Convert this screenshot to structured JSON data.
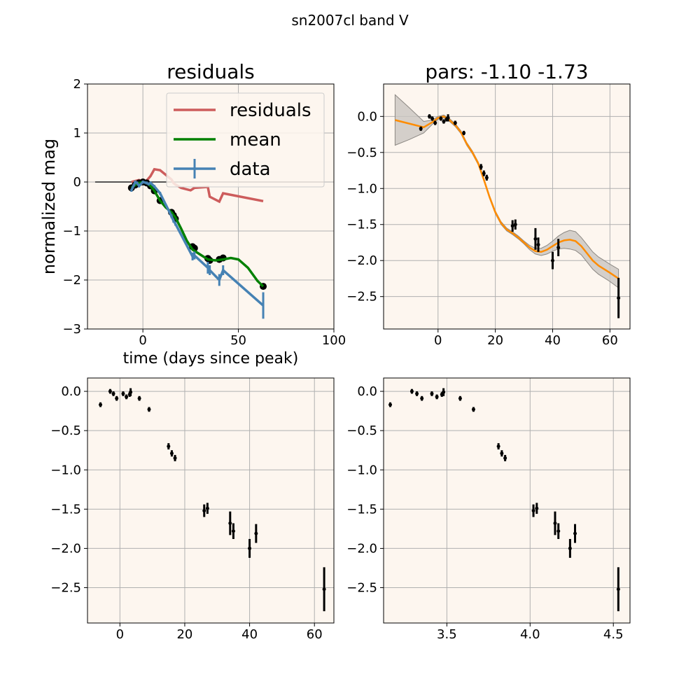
{
  "figure": {
    "suptitle": "sn2007cl band V"
  },
  "colors": {
    "face": "#fdf6ef",
    "grid": "#b0b0b0",
    "residuals": "#cd5c5c",
    "mean": "#008000",
    "data": "#4682b4",
    "fit": "#ff8c00",
    "band": "#c9c5c0",
    "points": "#000000"
  },
  "chart_data": [
    {
      "type": "line",
      "title": "residuals",
      "xlabel": "time (days since peak)",
      "ylabel": "normalized mag",
      "xlim": [
        -29,
        100
      ],
      "ylim": [
        -3,
        2
      ],
      "xticks": [
        0,
        50,
        100
      ],
      "yticks": [
        -3,
        -2,
        -1,
        0,
        1,
        2
      ],
      "grid": true,
      "legend": {
        "placement": "upper-right",
        "entries": [
          "residuals",
          "mean",
          "data"
        ]
      },
      "zero_line": {
        "x": [
          -25,
          95
        ],
        "y": 0
      },
      "series": [
        {
          "name": "residuals",
          "x": [
            -6,
            -4,
            -2,
            0,
            2,
            4,
            6,
            9,
            15,
            16,
            17,
            20,
            25,
            27,
            34,
            35,
            40,
            42,
            63
          ],
          "y": [
            0,
            0.02,
            0.04,
            0.0,
            0.03,
            0.12,
            0.26,
            0.24,
            0.05,
            -0.02,
            -0.05,
            -0.12,
            -0.17,
            -0.12,
            -0.1,
            -0.3,
            -0.4,
            -0.23,
            -0.39
          ]
        },
        {
          "name": "mean",
          "x": [
            -6,
            -4,
            -2,
            0,
            2,
            4,
            6,
            9,
            12,
            15,
            17,
            20,
            23,
            26,
            30,
            34,
            38,
            42,
            46,
            50,
            55,
            60,
            63
          ],
          "y": [
            -0.12,
            -0.06,
            -0.02,
            0.0,
            -0.02,
            -0.08,
            -0.18,
            -0.38,
            -0.52,
            -0.62,
            -0.72,
            -0.95,
            -1.2,
            -1.38,
            -1.48,
            -1.58,
            -1.6,
            -1.58,
            -1.55,
            -1.58,
            -1.75,
            -2.02,
            -2.13
          ]
        },
        {
          "name": "data",
          "x": [
            -6,
            -4,
            -3,
            -2,
            0,
            2,
            3,
            4,
            6,
            9,
            15,
            16,
            17,
            26,
            27,
            34,
            35,
            40,
            42,
            63
          ],
          "y": [
            -0.17,
            0.0,
            -0.02,
            -0.08,
            0.0,
            -0.02,
            -0.04,
            -0.02,
            -0.09,
            -0.23,
            -0.7,
            -0.79,
            -0.85,
            -1.52,
            -1.5,
            -1.75,
            -1.8,
            -2.0,
            -1.8,
            -2.52
          ],
          "yerr": [
            0.03,
            0.03,
            0.03,
            0.03,
            0.03,
            0.03,
            0.03,
            0.03,
            0.03,
            0.03,
            0.04,
            0.04,
            0.04,
            0.08,
            0.08,
            0.12,
            0.1,
            0.12,
            0.1,
            0.27
          ]
        }
      ],
      "black_points": {
        "x": [
          -6,
          -4,
          -2,
          0,
          2,
          4,
          6,
          9,
          15,
          16,
          17,
          26,
          27,
          34,
          35,
          40,
          42,
          63
        ],
        "y": [
          -0.12,
          -0.06,
          -0.02,
          0.0,
          -0.02,
          -0.08,
          -0.18,
          -0.38,
          -0.62,
          -0.68,
          -0.75,
          -1.32,
          -1.35,
          -1.56,
          -1.6,
          -1.58,
          -1.55,
          -2.13
        ]
      }
    },
    {
      "type": "line",
      "title": "pars: -1.10 -1.73",
      "xlim": [
        -19,
        67
      ],
      "ylim": [
        -2.95,
        0.45
      ],
      "xticks": [
        0,
        20,
        40,
        60
      ],
      "yticks": [
        0.0,
        -0.5,
        -1.0,
        -1.5,
        -2.0,
        -2.5
      ],
      "grid": true,
      "fit": {
        "x": [
          -15,
          -10,
          -5,
          -2,
          0,
          2,
          4,
          6,
          8,
          10,
          12,
          14,
          16,
          18,
          20,
          22,
          24,
          26,
          28,
          30,
          32,
          34,
          36,
          38,
          40,
          42,
          44,
          46,
          48,
          50,
          52,
          54,
          56,
          58,
          60,
          63
        ],
        "y": [
          -0.05,
          -0.1,
          -0.15,
          -0.08,
          -0.02,
          0.0,
          -0.05,
          -0.12,
          -0.22,
          -0.38,
          -0.5,
          -0.65,
          -0.88,
          -1.12,
          -1.33,
          -1.48,
          -1.57,
          -1.62,
          -1.68,
          -1.75,
          -1.82,
          -1.87,
          -1.88,
          -1.85,
          -1.8,
          -1.75,
          -1.72,
          -1.71,
          -1.73,
          -1.8,
          -1.9,
          -2.0,
          -2.07,
          -2.12,
          -2.17,
          -2.25
        ],
        "band_width": [
          0.35,
          0.22,
          0.08,
          0.03,
          0.02,
          0.02,
          0.02,
          0.02,
          0.02,
          0.02,
          0.02,
          0.02,
          0.02,
          0.02,
          0.02,
          0.02,
          0.02,
          0.02,
          0.02,
          0.02,
          0.03,
          0.04,
          0.05,
          0.06,
          0.07,
          0.09,
          0.11,
          0.13,
          0.13,
          0.12,
          0.12,
          0.12,
          0.12,
          0.12,
          0.12,
          0.13
        ]
      },
      "points": {
        "x": [
          -6,
          -3,
          -2,
          -1,
          1,
          2,
          3,
          3.5,
          6,
          9,
          15,
          16,
          17,
          26,
          27,
          34,
          35,
          40,
          42,
          63
        ],
        "y": [
          -0.17,
          0.0,
          -0.03,
          -0.09,
          -0.03,
          -0.07,
          -0.04,
          -0.02,
          -0.09,
          -0.23,
          -0.7,
          -0.79,
          -0.85,
          -1.52,
          -1.5,
          -1.7,
          -1.78,
          -2.0,
          -1.82,
          -2.52
        ],
        "yerr": [
          0.03,
          0.03,
          0.03,
          0.03,
          0.03,
          0.03,
          0.03,
          0.05,
          0.03,
          0.03,
          0.04,
          0.04,
          0.04,
          0.08,
          0.07,
          0.15,
          0.1,
          0.12,
          0.12,
          0.28
        ]
      }
    },
    {
      "type": "scatter",
      "xlim": [
        -10,
        66
      ],
      "ylim": [
        -2.95,
        0.17
      ],
      "xticks": [
        0,
        20,
        40,
        60
      ],
      "yticks": [
        0.0,
        -0.5,
        -1.0,
        -1.5,
        -2.0,
        -2.5
      ],
      "grid": true,
      "points": {
        "x": [
          -6,
          -3,
          -2,
          -1,
          1,
          2,
          3,
          3.3,
          6,
          9,
          15,
          16,
          17,
          26,
          27,
          34,
          35,
          40,
          42,
          63
        ],
        "y": [
          -0.17,
          0.0,
          -0.03,
          -0.09,
          -0.03,
          -0.07,
          -0.04,
          -0.01,
          -0.09,
          -0.23,
          -0.7,
          -0.79,
          -0.85,
          -1.52,
          -1.49,
          -1.68,
          -1.78,
          -2.0,
          -1.81,
          -2.52
        ],
        "yerr": [
          0.03,
          0.03,
          0.03,
          0.03,
          0.03,
          0.03,
          0.03,
          0.05,
          0.03,
          0.03,
          0.04,
          0.04,
          0.04,
          0.08,
          0.07,
          0.15,
          0.1,
          0.12,
          0.12,
          0.28
        ]
      }
    },
    {
      "type": "scatter",
      "xlim": [
        3.12,
        4.6
      ],
      "ylim": [
        -2.95,
        0.17
      ],
      "xticks": [
        3.5,
        4.0,
        4.5
      ],
      "yticks": [
        0.0,
        -0.5,
        -1.0,
        -1.5,
        -2.0,
        -2.5
      ],
      "grid": true,
      "points": {
        "x": [
          3.16,
          3.29,
          3.32,
          3.35,
          3.41,
          3.44,
          3.47,
          3.48,
          3.58,
          3.66,
          3.81,
          3.83,
          3.85,
          4.02,
          4.04,
          4.15,
          4.17,
          4.24,
          4.27,
          4.53
        ],
        "y": [
          -0.17,
          0.0,
          -0.03,
          -0.09,
          -0.03,
          -0.07,
          -0.04,
          -0.01,
          -0.09,
          -0.23,
          -0.7,
          -0.79,
          -0.85,
          -1.52,
          -1.49,
          -1.68,
          -1.78,
          -2.0,
          -1.81,
          -2.52
        ],
        "yerr": [
          0.03,
          0.03,
          0.03,
          0.03,
          0.03,
          0.03,
          0.03,
          0.05,
          0.03,
          0.03,
          0.04,
          0.04,
          0.04,
          0.08,
          0.07,
          0.15,
          0.1,
          0.12,
          0.12,
          0.28
        ]
      }
    }
  ]
}
